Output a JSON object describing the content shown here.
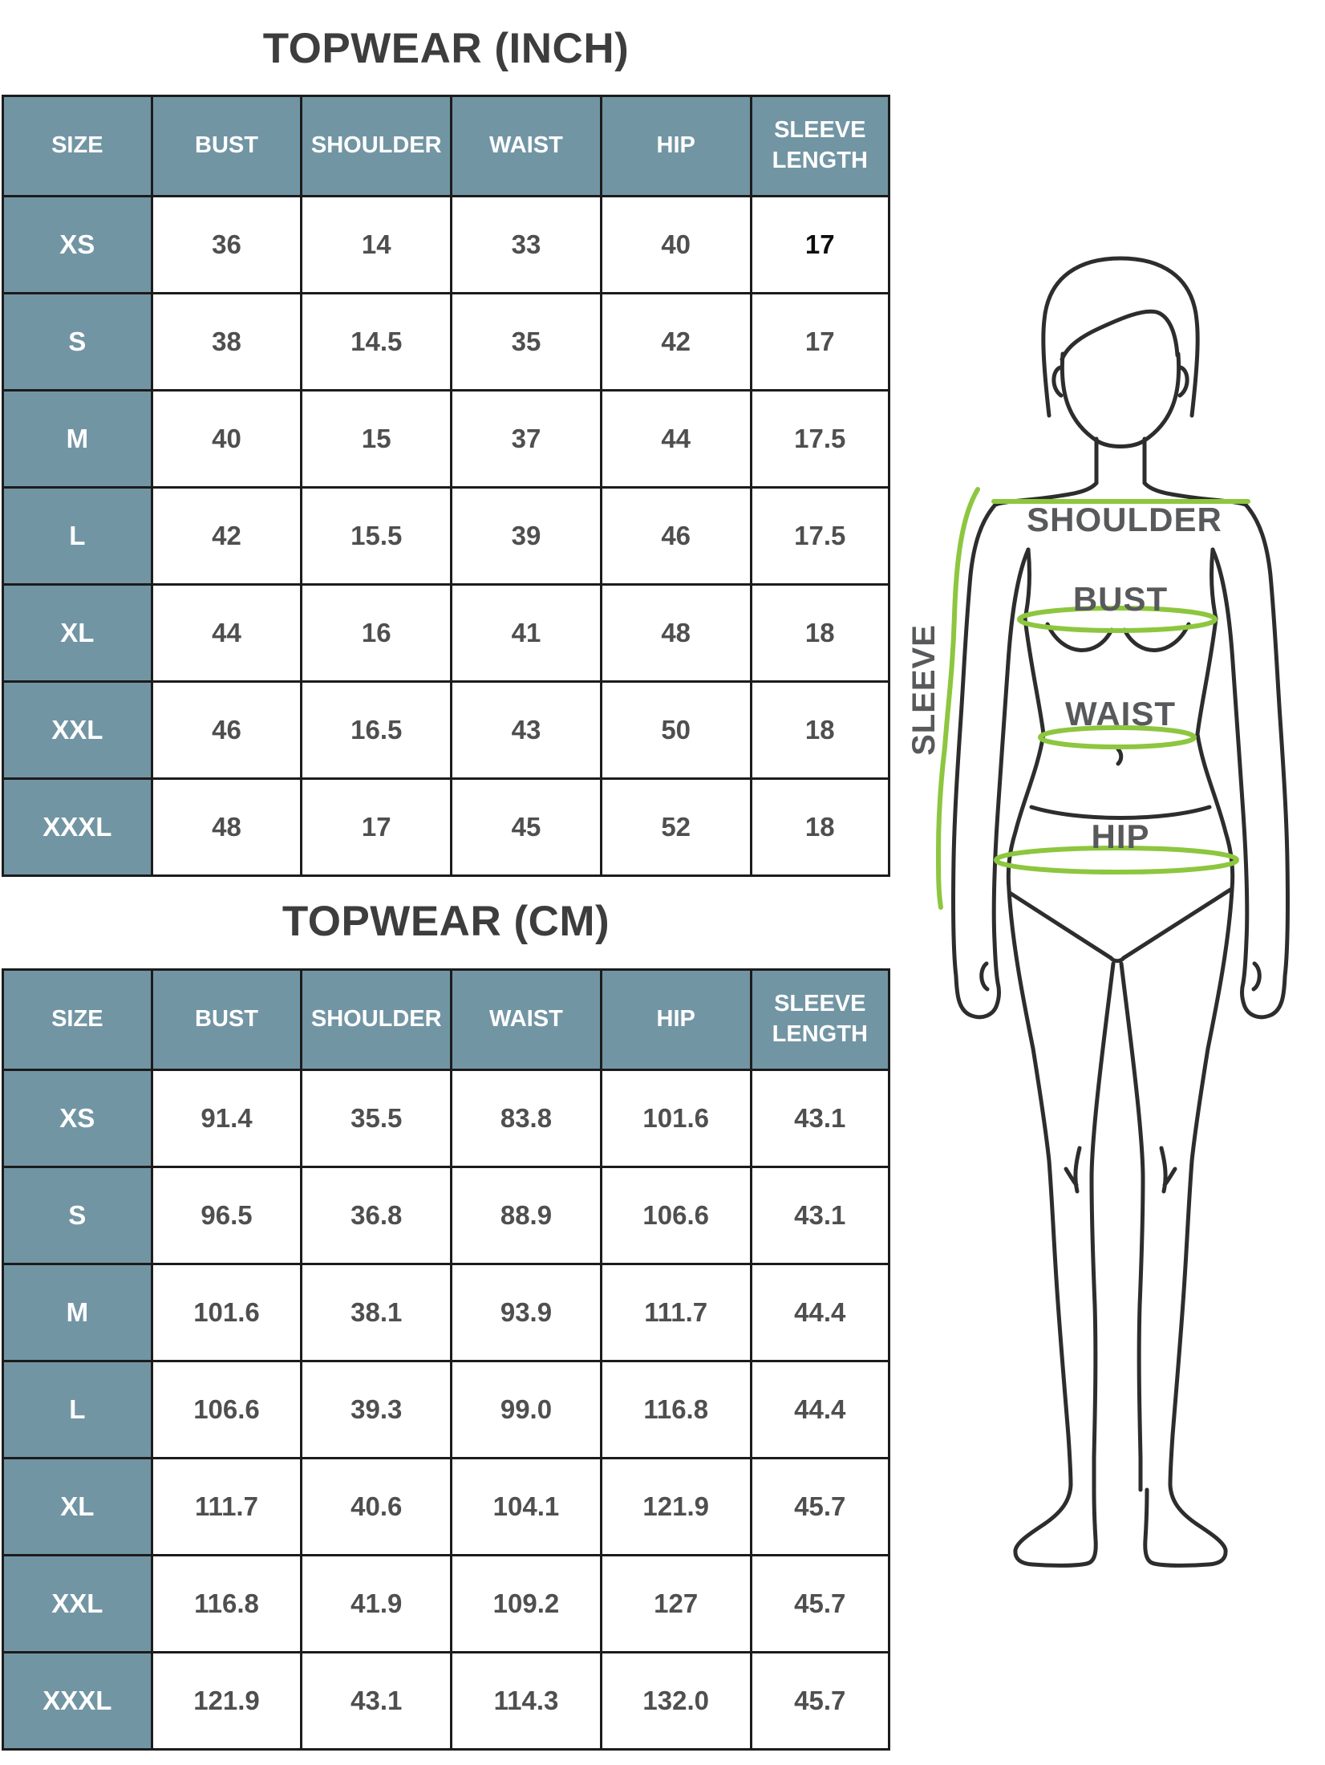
{
  "colors": {
    "page_bg": "#ffffff",
    "header_bg": "#7295a4",
    "header_text": "#ffffff",
    "cell_text": "#4f4f4f",
    "highlight_text": "#0d0d0d",
    "border": "#1c1c1c",
    "title_text": "#3d3d3d",
    "line_dark": "#2d2d2d",
    "accent_green": "#8dc63f",
    "figure_label": "#58595b"
  },
  "tables": [
    {
      "id": "inch",
      "title": "TOPWEAR (INCH)",
      "columns": [
        "SIZE",
        "BUST",
        "SHOULDER",
        "WAIST",
        "HIP",
        "SLEEVE LENGTH"
      ],
      "rows": [
        {
          "size": "XS",
          "values": [
            "36",
            "14",
            "33",
            "40",
            "17"
          ],
          "emphasis_col": 4
        },
        {
          "size": "S",
          "values": [
            "38",
            "14.5",
            "35",
            "42",
            "17"
          ]
        },
        {
          "size": "M",
          "values": [
            "40",
            "15",
            "37",
            "44",
            "17.5"
          ]
        },
        {
          "size": "L",
          "values": [
            "42",
            "15.5",
            "39",
            "46",
            "17.5"
          ]
        },
        {
          "size": "XL",
          "values": [
            "44",
            "16",
            "41",
            "48",
            "18"
          ]
        },
        {
          "size": "XXL",
          "values": [
            "46",
            "16.5",
            "43",
            "50",
            "18"
          ]
        },
        {
          "size": "XXXL",
          "values": [
            "48",
            "17",
            "45",
            "52",
            "18"
          ]
        }
      ]
    },
    {
      "id": "cm",
      "title": "TOPWEAR (CM)",
      "columns": [
        "SIZE",
        "BUST",
        "SHOULDER",
        "WAIST",
        "HIP",
        "SLEEVE LENGTH"
      ],
      "rows": [
        {
          "size": "XS",
          "values": [
            "91.4",
            "35.5",
            "83.8",
            "101.6",
            "43.1"
          ]
        },
        {
          "size": "S",
          "values": [
            "96.5",
            "36.8",
            "88.9",
            "106.6",
            "43.1"
          ]
        },
        {
          "size": "M",
          "values": [
            "101.6",
            "38.1",
            "93.9",
            "111.7",
            "44.4"
          ]
        },
        {
          "size": "L",
          "values": [
            "106.6",
            "39.3",
            "99.0",
            "116.8",
            "44.4"
          ]
        },
        {
          "size": "XL",
          "values": [
            "111.7",
            "40.6",
            "104.1",
            "121.9",
            "45.7"
          ]
        },
        {
          "size": "XXL",
          "values": [
            "116.8",
            "41.9",
            "109.2",
            "127",
            "45.7"
          ]
        },
        {
          "size": "XXXL",
          "values": [
            "121.9",
            "43.1",
            "114.3",
            "132.0",
            "45.7"
          ]
        }
      ]
    }
  ],
  "figure": {
    "labels": {
      "shoulder": "SHOULDER",
      "bust": "BUST",
      "waist": "WAIST",
      "hip": "HIP",
      "sleeve": "SLEEVE"
    }
  }
}
